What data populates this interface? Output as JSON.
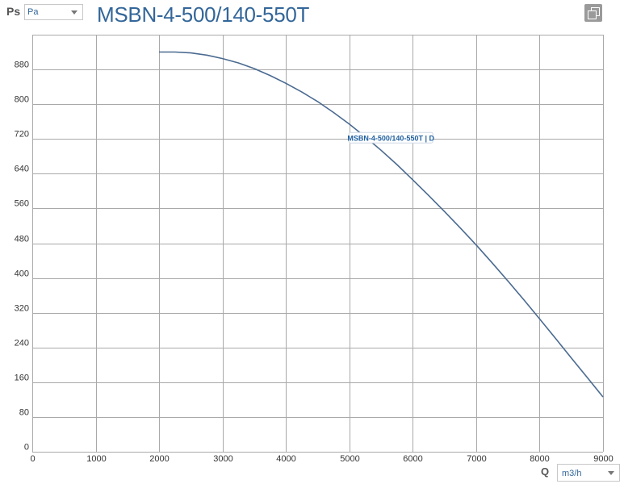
{
  "header": {
    "y_axis_symbol": "Ps",
    "y_unit_select": "Pa",
    "title": "MSBN-4-500/140-550T",
    "copy_icon": "copy-icon"
  },
  "footer": {
    "x_axis_symbol": "Q",
    "x_unit_select": "m3/h"
  },
  "colors": {
    "curve": "#4a6a90",
    "grid": "#a9a9a9",
    "title": "#336699",
    "curve_label": "#1f5f9f"
  },
  "chart_data": {
    "type": "line",
    "title": "MSBN-4-500/140-550T",
    "xlabel": "Q",
    "ylabel": "Ps",
    "xlim": [
      0,
      9000
    ],
    "ylim": [
      0,
      960
    ],
    "x_ticks": [
      0,
      1000,
      2000,
      3000,
      4000,
      5000,
      6000,
      7000,
      8000,
      9000
    ],
    "y_ticks": [
      0,
      80,
      160,
      240,
      320,
      400,
      480,
      560,
      640,
      720,
      800,
      880
    ],
    "grid": true,
    "series": [
      {
        "name": "MSBN-4-500/140-550T | D",
        "x": [
          2000,
          2250,
          2500,
          2750,
          3000,
          3250,
          3500,
          3750,
          4000,
          4250,
          4500,
          4750,
          5000,
          5250,
          5500,
          5750,
          6000,
          6250,
          6500,
          6750,
          7000,
          7250,
          7500,
          7750,
          8000,
          8250,
          8500,
          8750,
          9000
        ],
        "y": [
          920,
          920,
          918,
          913,
          905,
          895,
          882,
          866,
          848,
          828,
          806,
          781,
          754,
          725,
          694,
          661,
          626,
          590,
          553,
          515,
          476,
          435,
          393,
          350,
          306,
          261,
          216,
          171,
          126
        ]
      }
    ]
  }
}
